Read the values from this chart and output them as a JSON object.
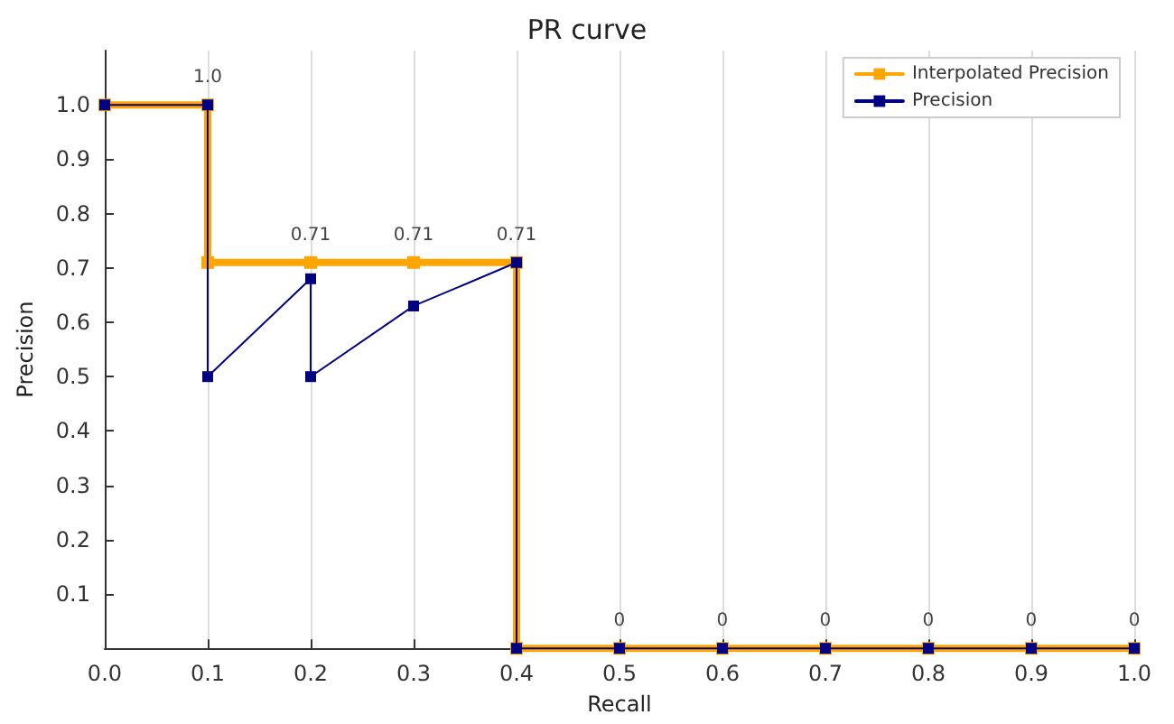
{
  "chart_data": {
    "type": "line",
    "title": "PR curve",
    "xlabel": "Recall",
    "ylabel": "Precision",
    "xlim": [
      0,
      1
    ],
    "xticks": [
      {
        "value": 0,
        "label": "0.0"
      },
      0.1,
      0.2,
      0.3,
      0.4,
      0.5,
      0.6,
      0.7,
      0.8,
      0.9,
      {
        "value": 1,
        "label": "1.0"
      }
    ],
    "ylim": [
      0,
      1.1
    ],
    "yticks": [
      0.1,
      0.2,
      0.3,
      0.4,
      0.5,
      0.6,
      0.7,
      0.8,
      0.9,
      {
        "value": 1,
        "label": "1.0"
      }
    ],
    "grid": "x",
    "legend": "top right",
    "marker": "square",
    "line_style": "solid",
    "series": [
      {
        "name": "Interpolated Precision",
        "color": "#ffa500",
        "x": [
          0,
          0.1,
          0.1,
          0.2,
          0.3,
          0.4,
          0.4,
          0.5,
          0.6,
          0.7,
          0.8,
          0.9,
          1.0
        ],
        "values": [
          1,
          1,
          0.71,
          0.71,
          0.71,
          0.71,
          0,
          0,
          0,
          0,
          0,
          0,
          0
        ]
      },
      {
        "name": "Precision",
        "color": "#000080",
        "x": [
          0,
          0.1,
          0.1,
          0.2,
          0.2,
          0.3,
          0.4,
          0.4,
          0.5,
          0.6,
          0.7,
          0.8,
          0.9,
          1.0
        ],
        "values": [
          1,
          1,
          0.5,
          0.68,
          0.5,
          0.63,
          0.71,
          0,
          0,
          0,
          0,
          0,
          0,
          0
        ]
      }
    ],
    "annotations": [
      {
        "text": "1.0",
        "x": 0.1,
        "y": 1
      },
      {
        "text": "0.71",
        "x": 0.2,
        "y": 0.71
      },
      {
        "text": "0.71",
        "x": 0.3,
        "y": 0.71
      },
      {
        "text": "0.71",
        "x": 0.4,
        "y": 0.71
      },
      {
        "text": "0",
        "x": 0.5,
        "y": 0
      },
      {
        "text": "0",
        "x": 0.6,
        "y": 0
      },
      {
        "text": "0",
        "x": 0.7,
        "y": 0
      },
      {
        "text": "0",
        "x": 0.8,
        "y": 0
      },
      {
        "text": "0",
        "x": 0.9,
        "y": 0
      },
      {
        "text": "0",
        "x": 1.0,
        "y": 0
      }
    ]
  }
}
